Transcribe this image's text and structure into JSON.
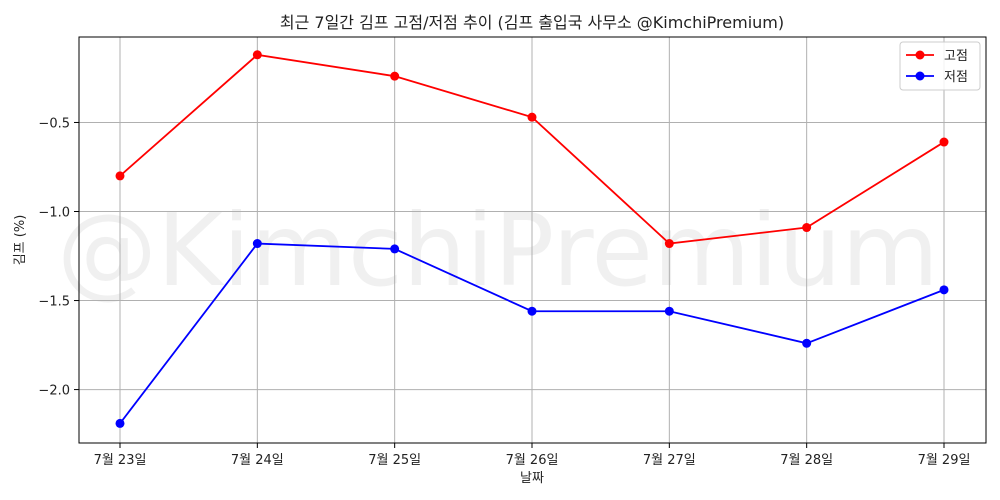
{
  "chart_data": {
    "type": "line",
    "title": "최근 7일간 김프 고점/저점 추이 (김프 출입국 사무소 @KimchiPremium)",
    "xlabel": "날짜",
    "ylabel": "김프 (%)",
    "categories": [
      "7월 23일",
      "7월 24일",
      "7월 25일",
      "7월 26일",
      "7월 27일",
      "7월 28일",
      "7월 29일"
    ],
    "series": [
      {
        "name": "고점",
        "color": "#ff0000",
        "values": [
          -0.8,
          -0.12,
          -0.24,
          -0.47,
          -1.18,
          -1.09,
          -0.61
        ]
      },
      {
        "name": "저점",
        "color": "#0000ff",
        "values": [
          -2.19,
          -1.18,
          -1.21,
          -1.56,
          -1.56,
          -1.74,
          -1.44
        ]
      }
    ],
    "yticks": [
      -0.5,
      -1.0,
      -1.5,
      -2.0
    ],
    "ytick_labels": [
      "−0.5",
      "−1.0",
      "−1.5",
      "−2.0"
    ],
    "ylim": [
      -2.3,
      -0.02
    ],
    "grid": true,
    "legend_position": "top-right",
    "watermark": "@KimchiPremium"
  }
}
